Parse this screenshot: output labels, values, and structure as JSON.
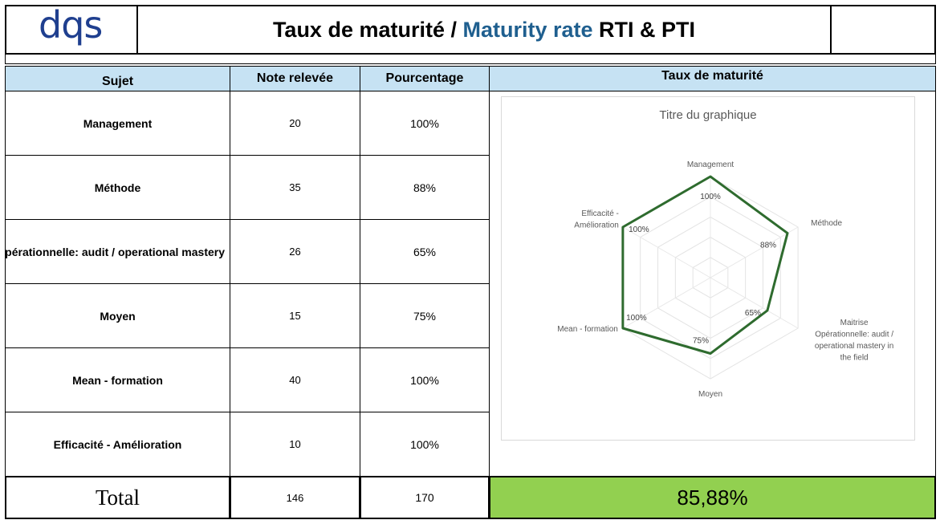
{
  "header": {
    "logo_text": "dqs",
    "title_part1": "Taux de maturité / ",
    "title_part2": "Maturity rate",
    "title_part3": " RTI & PTI",
    "accent_color": "#1f5f8f"
  },
  "table": {
    "columns": [
      "Sujet",
      "Note relevée",
      "Pourcentage",
      "Taux de maturité"
    ],
    "rows": [
      {
        "subject": "Management",
        "note": "20",
        "percent": "100%"
      },
      {
        "subject": "Méthode",
        "note": "35",
        "percent": "88%"
      },
      {
        "subject": "Maitrise Opérationnelle: audit  / operational mastery in the field",
        "subject_visible": "pérationnelle: audit  / operational mastery",
        "note": "26",
        "percent": "65%"
      },
      {
        "subject": "Moyen",
        "note": "15",
        "percent": "75%"
      },
      {
        "subject": "Mean - formation",
        "note": "40",
        "percent": "100%"
      },
      {
        "subject": "Efficacité - Amélioration",
        "note": "10",
        "percent": "100%"
      }
    ],
    "total": {
      "label": "Total",
      "note": "146",
      "percent": "170",
      "result": "85,88%",
      "result_color": "#92d050"
    }
  },
  "chart_data": {
    "type": "radar",
    "title": "Titre du graphique",
    "categories": [
      "Management",
      "Méthode",
      "Maitrise Opérationnelle: audit  / operational mastery in the field",
      "Moyen",
      "Mean - formation",
      "Efficacité - Amélioration"
    ],
    "category_labels": [
      [
        "Management"
      ],
      [
        "Méthode"
      ],
      [
        "Maitrise",
        "Opérationnelle: audit  /",
        "operational mastery in",
        "the field"
      ],
      [
        "Moyen"
      ],
      [
        "Mean - formation"
      ],
      [
        "Efficacité -",
        "Amélioration"
      ]
    ],
    "series": [
      {
        "values": [
          100,
          88,
          65,
          75,
          100,
          100
        ],
        "data_labels": [
          "100%",
          "88%",
          "65%",
          "75%",
          "100%",
          "100%"
        ],
        "color": "#2e6b2e"
      }
    ],
    "r_range": [
      0,
      100
    ],
    "grid": true,
    "legend": "none"
  }
}
